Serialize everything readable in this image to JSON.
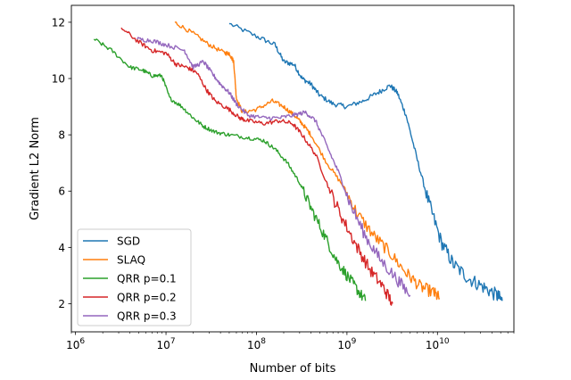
{
  "chart_data": {
    "type": "line",
    "title": "",
    "xlabel": "Number of bits",
    "ylabel": "Gradient L2 Norm",
    "xscale": "log",
    "xlim": [
      900000,
      70000000000
    ],
    "ylim": [
      1.0,
      12.6
    ],
    "xticks": [
      {
        "value": 1000000,
        "base": "10",
        "exp": "6"
      },
      {
        "value": 10000000,
        "base": "10",
        "exp": "7"
      },
      {
        "value": 100000000,
        "base": "10",
        "exp": "8"
      },
      {
        "value": 1000000000,
        "base": "10",
        "exp": "9"
      },
      {
        "value": 10000000000,
        "base": "10",
        "exp": "10"
      }
    ],
    "yticks": [
      {
        "value": 2,
        "label": "2"
      },
      {
        "value": 4,
        "label": "4"
      },
      {
        "value": 6,
        "label": "6"
      },
      {
        "value": 8,
        "label": "8"
      },
      {
        "value": 10,
        "label": "10"
      },
      {
        "value": 12,
        "label": "12"
      }
    ],
    "legend_position": "lower-left",
    "series": [
      {
        "name": "SGD",
        "color": "#1f77b4",
        "noise": 0.25,
        "points": [
          [
            50000000.0,
            11.95
          ],
          [
            100000000.0,
            11.5
          ],
          [
            160000000.0,
            11.2
          ],
          [
            200000000.0,
            10.6
          ],
          [
            260000000.0,
            10.5
          ],
          [
            320000000.0,
            10.0
          ],
          [
            400000000.0,
            9.8
          ],
          [
            500000000.0,
            9.4
          ],
          [
            700000000.0,
            9.1
          ],
          [
            1000000000.0,
            9.0
          ],
          [
            1500000000.0,
            9.2
          ],
          [
            2200000000.0,
            9.5
          ],
          [
            3000000000.0,
            9.75
          ],
          [
            3600000000.0,
            9.5
          ],
          [
            4500000000.0,
            8.7
          ],
          [
            6000000000.0,
            7.1
          ],
          [
            8000000000.0,
            5.6
          ],
          [
            11000000000.0,
            4.2
          ],
          [
            15000000000.0,
            3.4
          ],
          [
            22000000000.0,
            2.9
          ],
          [
            32000000000.0,
            2.6
          ],
          [
            45000000000.0,
            2.3
          ],
          [
            52000000000.0,
            2.1
          ]
        ]
      },
      {
        "name": "SLAQ",
        "color": "#ff7f0e",
        "noise": 0.22,
        "points": [
          [
            12500000.0,
            12.0
          ],
          [
            20000000.0,
            11.6
          ],
          [
            30000000.0,
            11.2
          ],
          [
            45000000.0,
            10.9
          ],
          [
            50000000.0,
            10.9
          ],
          [
            56000000.0,
            10.6
          ],
          [
            60000000.0,
            9.3
          ],
          [
            70000000.0,
            8.8
          ],
          [
            100000000.0,
            8.9
          ],
          [
            150000000.0,
            9.2
          ],
          [
            200000000.0,
            9.0
          ],
          [
            260000000.0,
            8.7
          ],
          [
            320000000.0,
            8.4
          ],
          [
            400000000.0,
            8.0
          ],
          [
            600000000.0,
            7.0
          ],
          [
            900000000.0,
            6.2
          ],
          [
            1300000000.0,
            5.2
          ],
          [
            2000000000.0,
            4.4
          ],
          [
            3000000000.0,
            3.8
          ],
          [
            4500000000.0,
            3.1
          ],
          [
            6500000000.0,
            2.6
          ],
          [
            9000000000.0,
            2.4
          ],
          [
            10500000000.0,
            2.2
          ]
        ]
      },
      {
        "name": "QRR p=0.1",
        "color": "#2ca02c",
        "noise": 0.2,
        "points": [
          [
            1600000.0,
            11.4
          ],
          [
            2500000.0,
            11.0
          ],
          [
            4000000.0,
            10.4
          ],
          [
            5500000.0,
            10.3
          ],
          [
            7000000.0,
            10.1
          ],
          [
            9000000.0,
            10.1
          ],
          [
            11000000.0,
            9.3
          ],
          [
            15000000.0,
            9.0
          ],
          [
            20000000.0,
            8.6
          ],
          [
            26000000.0,
            8.3
          ],
          [
            35000000.0,
            8.1
          ],
          [
            50000000.0,
            8.0
          ],
          [
            80000000.0,
            7.9
          ],
          [
            120000000.0,
            7.8
          ],
          [
            160000000.0,
            7.5
          ],
          [
            220000000.0,
            7.0
          ],
          [
            300000000.0,
            6.3
          ],
          [
            400000000.0,
            5.4
          ],
          [
            550000000.0,
            4.5
          ],
          [
            750000000.0,
            3.6
          ],
          [
            1000000000.0,
            3.0
          ],
          [
            1300000000.0,
            2.5
          ],
          [
            1600000000.0,
            2.1
          ]
        ]
      },
      {
        "name": "QRR p=0.2",
        "color": "#d62728",
        "noise": 0.22,
        "points": [
          [
            3200000.0,
            11.8
          ],
          [
            5000000.0,
            11.3
          ],
          [
            7000000.0,
            11.0
          ],
          [
            10000000.0,
            10.9
          ],
          [
            13000000.0,
            10.5
          ],
          [
            17000000.0,
            10.4
          ],
          [
            22000000.0,
            10.2
          ],
          [
            28000000.0,
            9.6
          ],
          [
            35000000.0,
            9.2
          ],
          [
            50000000.0,
            8.9
          ],
          [
            65000000.0,
            8.6
          ],
          [
            80000000.0,
            8.5
          ],
          [
            120000000.0,
            8.4
          ],
          [
            180000000.0,
            8.5
          ],
          [
            250000000.0,
            8.4
          ],
          [
            320000000.0,
            8.0
          ],
          [
            450000000.0,
            7.3
          ],
          [
            650000000.0,
            6.0
          ],
          [
            900000000.0,
            5.0
          ],
          [
            1300000000.0,
            4.0
          ],
          [
            1800000000.0,
            3.2
          ],
          [
            2500000000.0,
            2.6
          ],
          [
            3200000000.0,
            2.0
          ]
        ]
      },
      {
        "name": "QRR p=0.3",
        "color": "#9467bd",
        "noise": 0.22,
        "points": [
          [
            4800000.0,
            11.4
          ],
          [
            7000000.0,
            11.35
          ],
          [
            10000000.0,
            11.2
          ],
          [
            16000000.0,
            11.0
          ],
          [
            20000000.0,
            10.4
          ],
          [
            26000000.0,
            10.6
          ],
          [
            32000000.0,
            10.2
          ],
          [
            40000000.0,
            9.8
          ],
          [
            50000000.0,
            9.5
          ],
          [
            60000000.0,
            9.1
          ],
          [
            80000000.0,
            8.7
          ],
          [
            120000000.0,
            8.6
          ],
          [
            180000000.0,
            8.6
          ],
          [
            260000000.0,
            8.7
          ],
          [
            350000000.0,
            8.8
          ],
          [
            450000000.0,
            8.5
          ],
          [
            600000000.0,
            7.6
          ],
          [
            800000000.0,
            6.7
          ],
          [
            1100000000.0,
            5.5
          ],
          [
            1600000000.0,
            4.4
          ],
          [
            2300000000.0,
            3.6
          ],
          [
            3500000000.0,
            2.9
          ],
          [
            5000000000.0,
            2.3
          ]
        ]
      }
    ]
  }
}
